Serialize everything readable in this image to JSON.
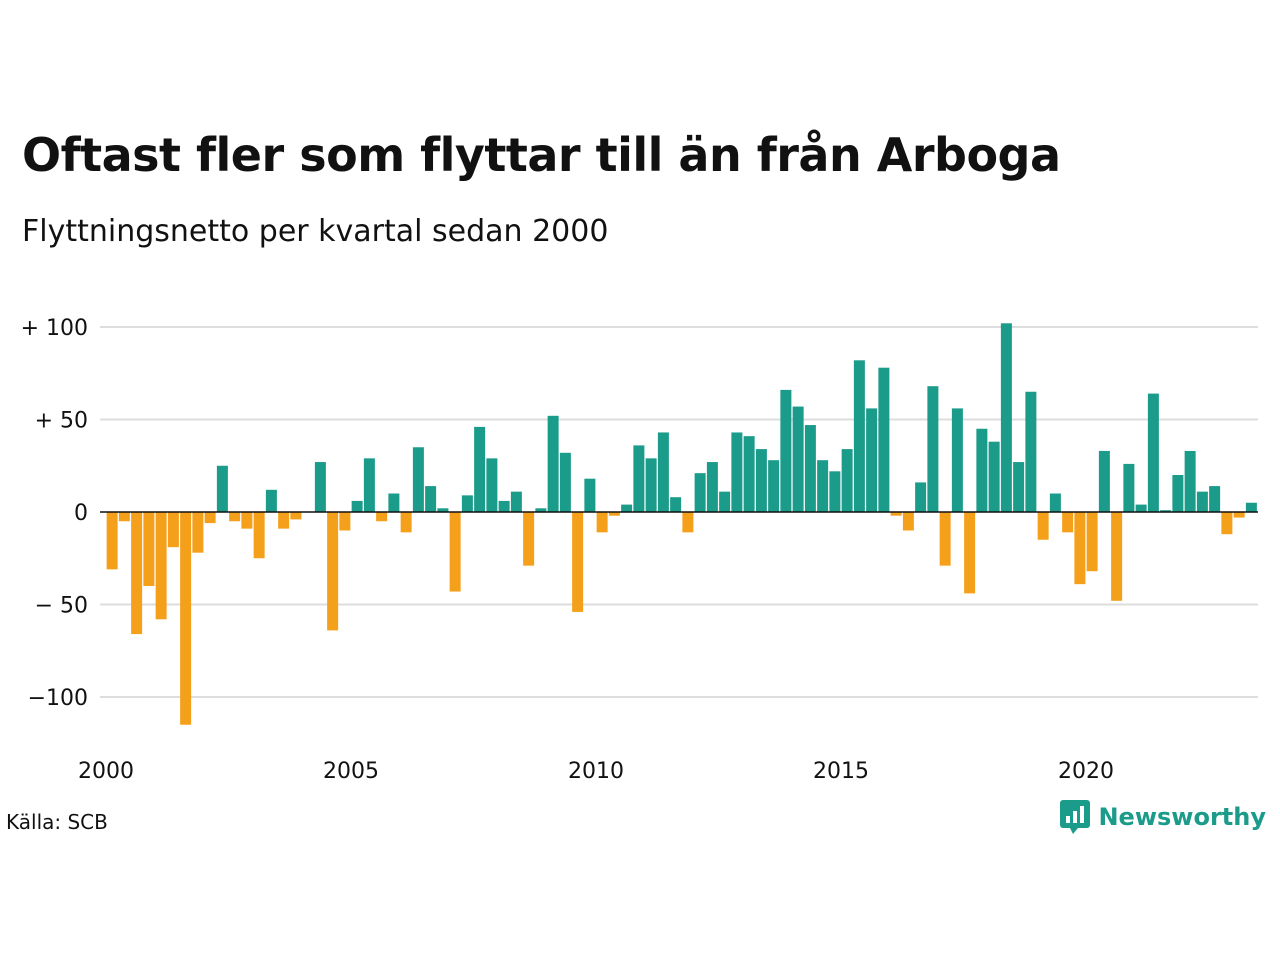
{
  "title": "Oftast fler som flyttar till än från Arboga",
  "subtitle": "Flyttningsnetto per kvartal sedan 2000",
  "source": "Källa: SCB",
  "brand": {
    "name": "Newsworthy",
    "icon": "newsworthy-logo-icon"
  },
  "colors": {
    "positive": "#1b9b8a",
    "negative": "#f5a01a",
    "grid": "#dddddd",
    "zero": "#111111"
  },
  "chart_data": {
    "type": "bar",
    "x_start": 2000.0,
    "x_step": 0.25,
    "values": [
      -31,
      -5,
      -66,
      -40,
      -58,
      -19,
      -115,
      -22,
      -6,
      25,
      -5,
      -9,
      -25,
      12,
      -9,
      -4,
      0,
      27,
      -64,
      -10,
      6,
      29,
      -5,
      10,
      -11,
      35,
      14,
      2,
      -43,
      9,
      46,
      29,
      6,
      11,
      -29,
      2,
      52,
      32,
      -54,
      18,
      -11,
      -2,
      4,
      36,
      29,
      43,
      8,
      -11,
      21,
      27,
      11,
      43,
      41,
      34,
      28,
      66,
      57,
      47,
      28,
      22,
      34,
      82,
      56,
      78,
      -2,
      -10,
      16,
      68,
      -29,
      56,
      -44,
      45,
      38,
      102,
      27,
      65,
      -15,
      10,
      -11,
      -39,
      -32,
      33,
      -48,
      26,
      4,
      64,
      1,
      20,
      33,
      11,
      14,
      -12,
      -3,
      5
    ],
    "ylim": [
      -120,
      110
    ],
    "y_ticks": [
      100,
      50,
      0,
      -50,
      -100
    ],
    "y_tick_labels": [
      "+ 100",
      "+  50",
      "0",
      "− 50",
      "−100"
    ],
    "x_ticks": [
      2000,
      2005,
      2010,
      2015,
      2020
    ],
    "x_tick_labels": [
      "2000",
      "2005",
      "2010",
      "2015",
      "2020"
    ],
    "grid": true,
    "legend": "none"
  }
}
